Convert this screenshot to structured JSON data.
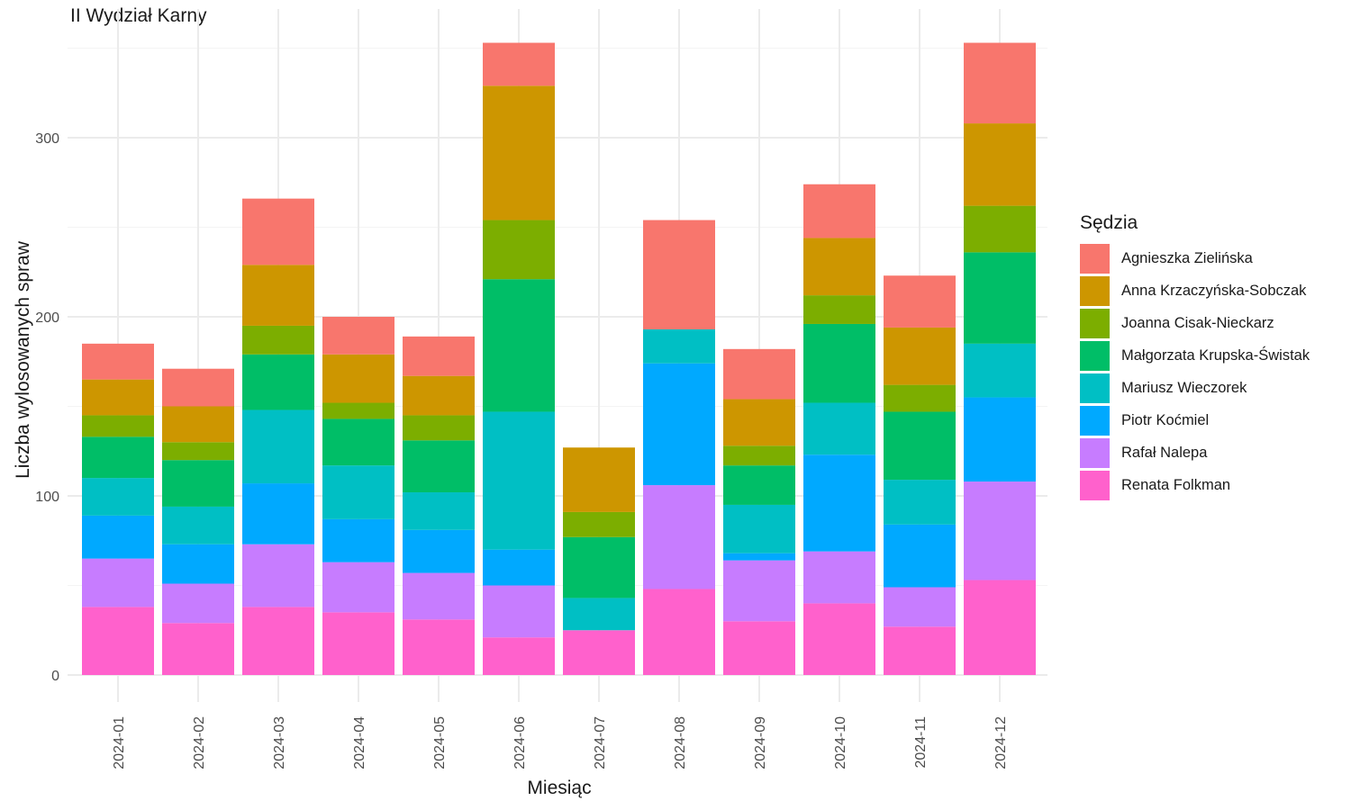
{
  "chart_data": {
    "type": "bar",
    "stacked": true,
    "title": "II Wydział Karny",
    "xlabel": "Miesiąc",
    "ylabel": "Liczba wylosowanych spraw",
    "ylim": [
      0,
      360
    ],
    "yticks": [
      0,
      100,
      200,
      300
    ],
    "grid": true,
    "legend": {
      "title": "Sędzia",
      "position": "right"
    },
    "categories": [
      "2024-01",
      "2024-02",
      "2024-03",
      "2024-04",
      "2024-05",
      "2024-06",
      "2024-07",
      "2024-08",
      "2024-09",
      "2024-10",
      "2024-11",
      "2024-12"
    ],
    "series": [
      {
        "name": "Renata Folkman",
        "color": "#FF61CC",
        "values": [
          38,
          29,
          38,
          35,
          31,
          21,
          25,
          48,
          30,
          40,
          27,
          53
        ]
      },
      {
        "name": "Rafał Nalepa",
        "color": "#C77CFF",
        "values": [
          27,
          22,
          35,
          28,
          26,
          29,
          0,
          58,
          34,
          29,
          22,
          55
        ]
      },
      {
        "name": "Piotr Koćmiel",
        "color": "#00A9FF",
        "values": [
          24,
          22,
          34,
          24,
          24,
          20,
          0,
          68,
          4,
          54,
          35,
          47
        ]
      },
      {
        "name": "Mariusz Wieczorek",
        "color": "#00BFC4",
        "values": [
          21,
          21,
          41,
          30,
          21,
          77,
          18,
          19,
          27,
          29,
          25,
          30
        ]
      },
      {
        "name": "Małgorzata Krupska-Świstak",
        "color": "#00BE67",
        "values": [
          23,
          26,
          31,
          26,
          29,
          74,
          34,
          0,
          22,
          44,
          38,
          51
        ]
      },
      {
        "name": "Joanna Cisak-Nieckarz",
        "color": "#7CAE00",
        "values": [
          12,
          10,
          16,
          9,
          14,
          33,
          14,
          0,
          11,
          16,
          15,
          26
        ]
      },
      {
        "name": "Anna Krzaczyńska-Sobczak",
        "color": "#CD9600",
        "values": [
          20,
          20,
          34,
          27,
          22,
          75,
          36,
          0,
          26,
          32,
          32,
          46
        ]
      },
      {
        "name": "Agnieszka Zielińska",
        "color": "#F8766D",
        "values": [
          20,
          21,
          37,
          21,
          22,
          24,
          0,
          61,
          28,
          30,
          29,
          45
        ]
      }
    ]
  }
}
